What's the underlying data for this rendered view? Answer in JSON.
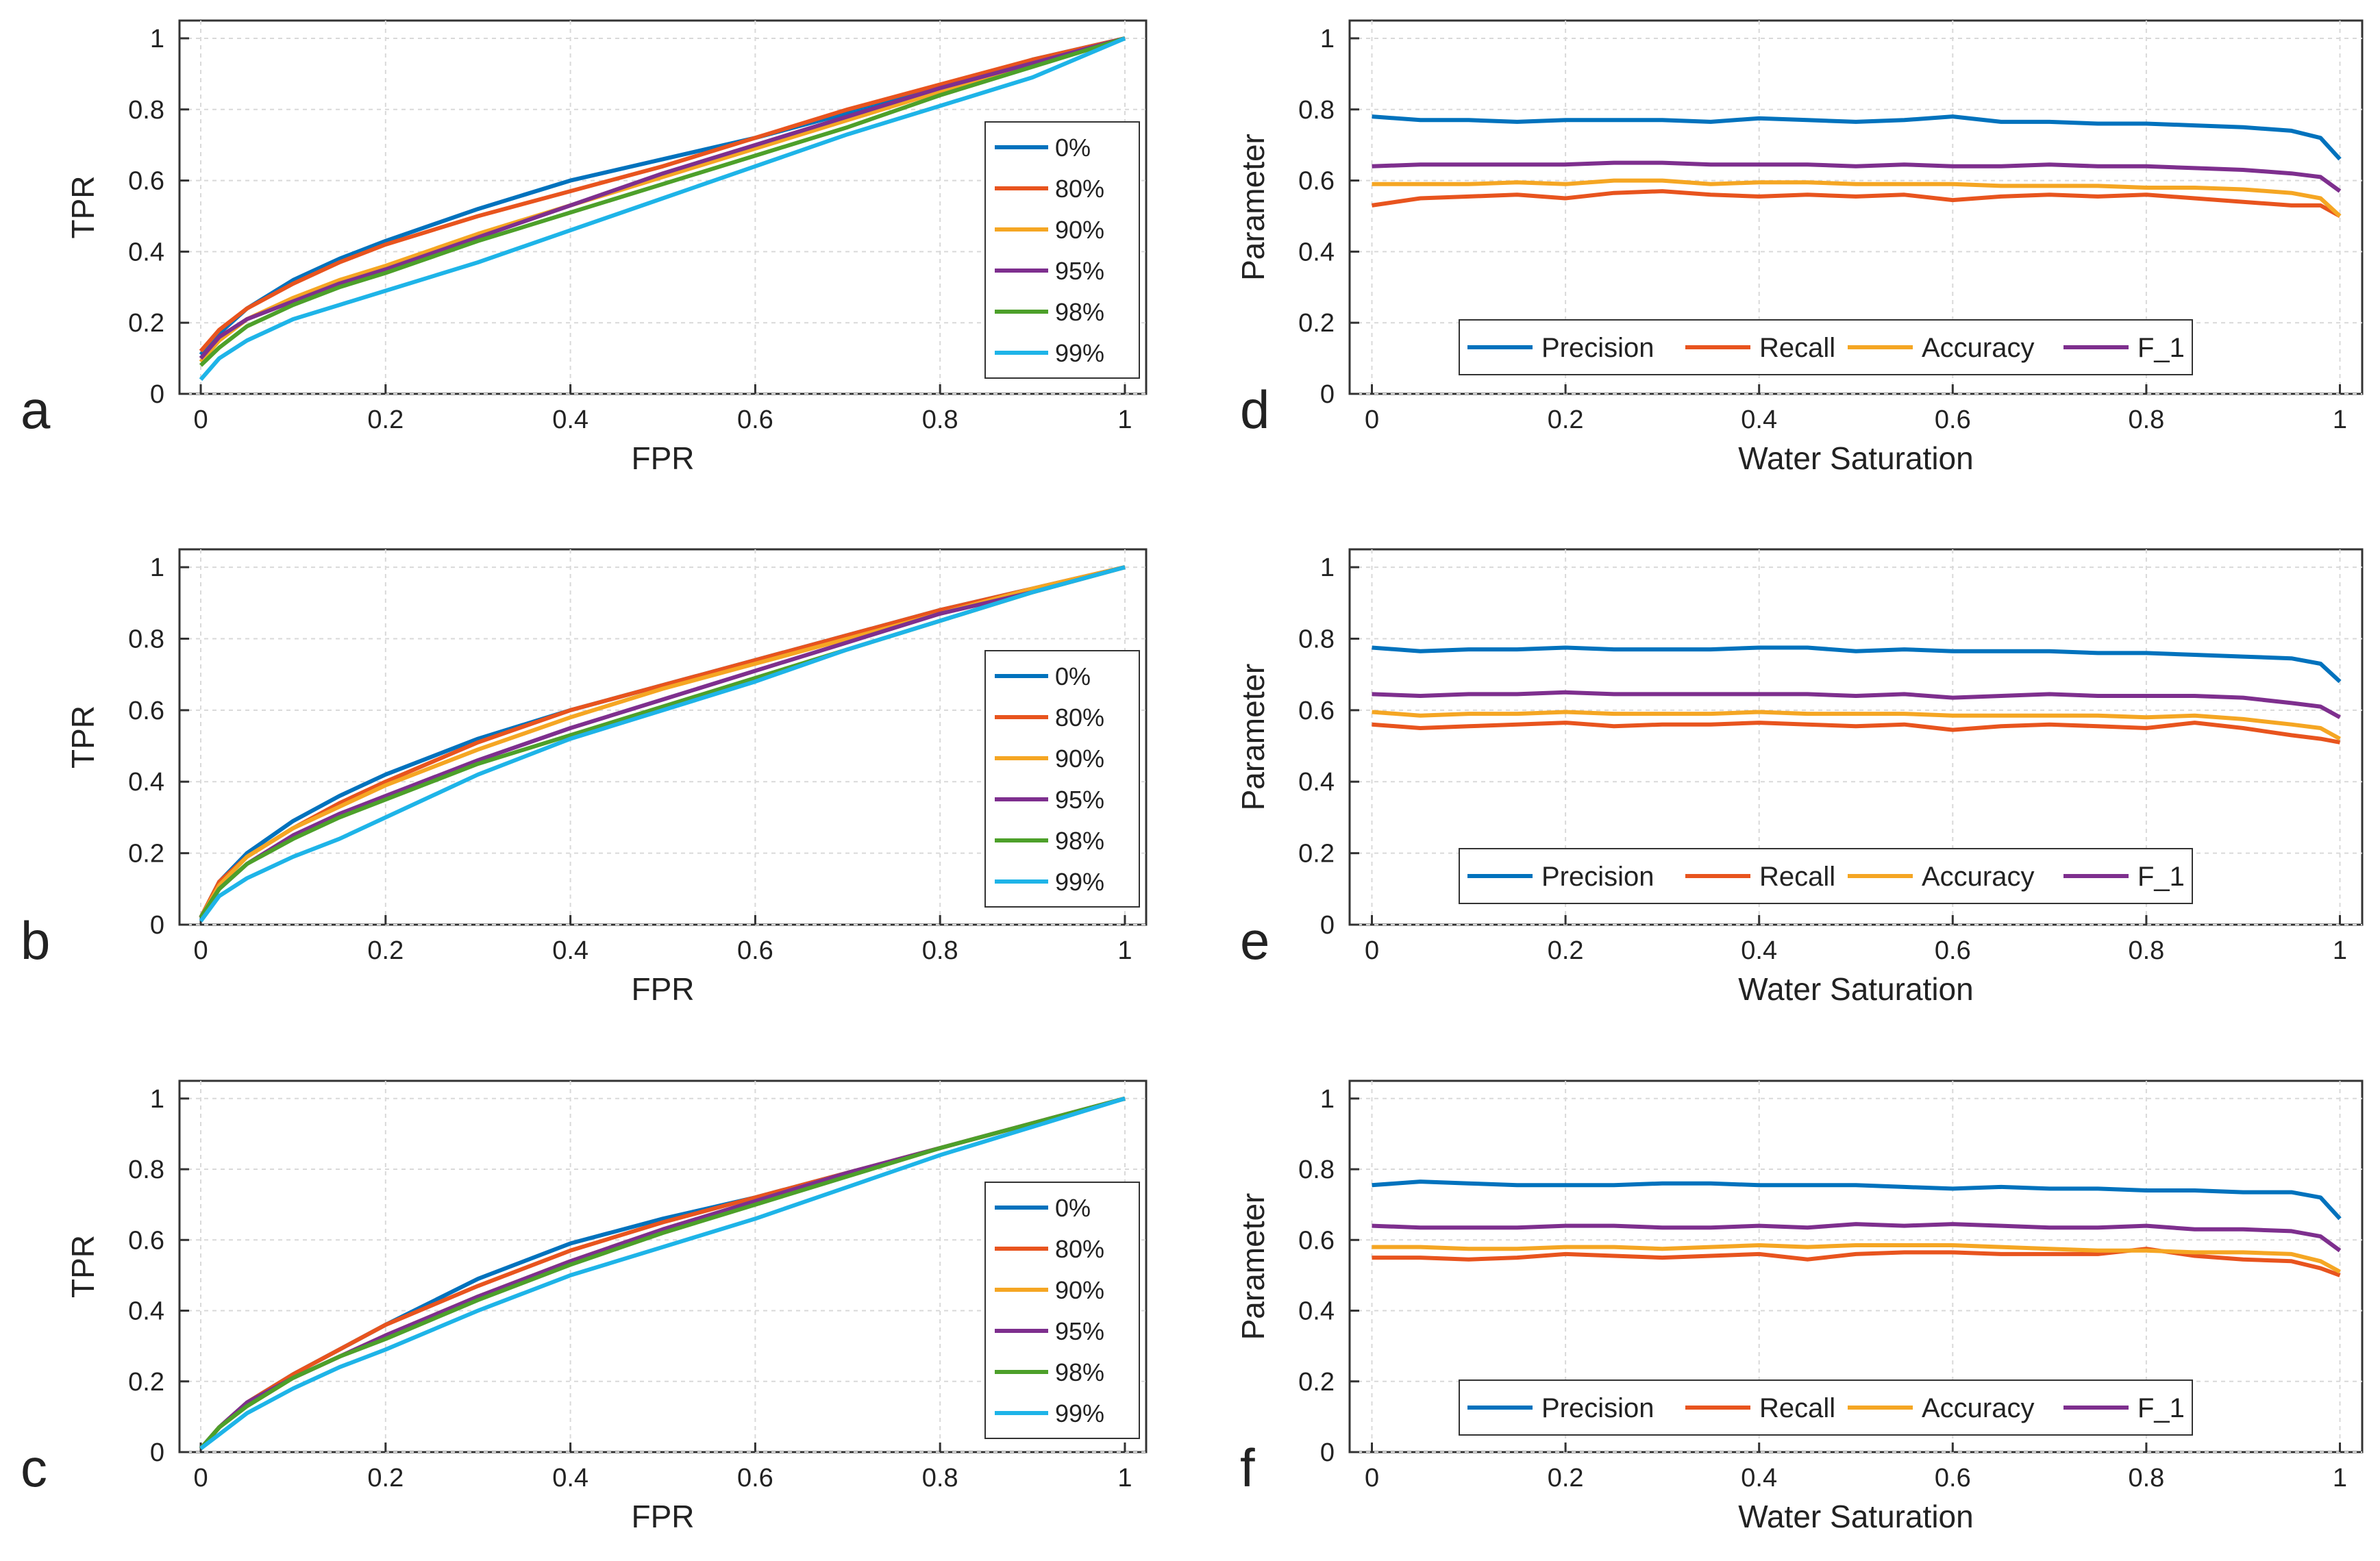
{
  "colors": {
    "blue": "#0072BD",
    "orange": "#E8541E",
    "yellow": "#F5A623",
    "purple": "#7E2F8E",
    "green": "#4DA02A",
    "cyan": "#1EB4E8",
    "grid": "#d9d9d9",
    "axis": "#333333"
  },
  "chart_data": [
    {
      "id": "a",
      "panel_label": "a",
      "type": "line",
      "legend_position": "right",
      "xlabel": "FPR",
      "ylabel": "TPR",
      "xlim": [
        0,
        1
      ],
      "ylim": [
        0,
        1
      ],
      "xticks": [
        0,
        0.2,
        0.4,
        0.6,
        0.8,
        1
      ],
      "xtick_labels": [
        "0",
        "0.2",
        "0.4",
        "0.6",
        "0.8",
        "1"
      ],
      "yticks": [
        0,
        0.2,
        0.4,
        0.6,
        0.8,
        1
      ],
      "ytick_labels": [
        "0",
        "0.2",
        "0.4",
        "0.6",
        "0.8",
        "1"
      ],
      "x": [
        0,
        0.02,
        0.05,
        0.1,
        0.15,
        0.2,
        0.3,
        0.4,
        0.5,
        0.6,
        0.7,
        0.8,
        0.9,
        1
      ],
      "series": [
        {
          "name": "0%",
          "color_key": "blue",
          "values": [
            0.11,
            0.17,
            0.24,
            0.32,
            0.38,
            0.43,
            0.52,
            0.6,
            0.66,
            0.72,
            0.79,
            0.86,
            0.94,
            1
          ]
        },
        {
          "name": "80%",
          "color_key": "orange",
          "values": [
            0.12,
            0.18,
            0.24,
            0.31,
            0.37,
            0.42,
            0.5,
            0.57,
            0.64,
            0.72,
            0.8,
            0.87,
            0.94,
            1
          ]
        },
        {
          "name": "90%",
          "color_key": "yellow",
          "values": [
            0.09,
            0.15,
            0.21,
            0.27,
            0.32,
            0.36,
            0.45,
            0.53,
            0.61,
            0.69,
            0.77,
            0.85,
            0.93,
            1
          ]
        },
        {
          "name": "95%",
          "color_key": "purple",
          "values": [
            0.1,
            0.16,
            0.21,
            0.26,
            0.31,
            0.35,
            0.44,
            0.53,
            0.62,
            0.7,
            0.78,
            0.86,
            0.93,
            1
          ]
        },
        {
          "name": "98%",
          "color_key": "green",
          "values": [
            0.08,
            0.13,
            0.19,
            0.25,
            0.3,
            0.34,
            0.43,
            0.51,
            0.59,
            0.67,
            0.75,
            0.84,
            0.92,
            1
          ]
        },
        {
          "name": "99%",
          "color_key": "cyan",
          "values": [
            0.04,
            0.1,
            0.15,
            0.21,
            0.25,
            0.29,
            0.37,
            0.46,
            0.55,
            0.64,
            0.73,
            0.81,
            0.89,
            1
          ]
        }
      ]
    },
    {
      "id": "b",
      "panel_label": "b",
      "type": "line",
      "legend_position": "right",
      "xlabel": "FPR",
      "ylabel": "TPR",
      "xlim": [
        0,
        1
      ],
      "ylim": [
        0,
        1
      ],
      "xticks": [
        0,
        0.2,
        0.4,
        0.6,
        0.8,
        1
      ],
      "xtick_labels": [
        "0",
        "0.2",
        "0.4",
        "0.6",
        "0.8",
        "1"
      ],
      "yticks": [
        0,
        0.2,
        0.4,
        0.6,
        0.8,
        1
      ],
      "ytick_labels": [
        "0",
        "0.2",
        "0.4",
        "0.6",
        "0.8",
        "1"
      ],
      "x": [
        0,
        0.02,
        0.05,
        0.1,
        0.15,
        0.2,
        0.3,
        0.4,
        0.5,
        0.6,
        0.7,
        0.8,
        0.9,
        1
      ],
      "series": [
        {
          "name": "0%",
          "color_key": "blue",
          "values": [
            0.02,
            0.12,
            0.2,
            0.29,
            0.36,
            0.42,
            0.52,
            0.6,
            0.67,
            0.74,
            0.81,
            0.88,
            0.94,
            1
          ]
        },
        {
          "name": "80%",
          "color_key": "orange",
          "values": [
            0.02,
            0.12,
            0.19,
            0.27,
            0.34,
            0.4,
            0.51,
            0.6,
            0.67,
            0.74,
            0.81,
            0.88,
            0.94,
            1
          ]
        },
        {
          "name": "90%",
          "color_key": "yellow",
          "values": [
            0.02,
            0.11,
            0.19,
            0.27,
            0.33,
            0.39,
            0.49,
            0.58,
            0.66,
            0.73,
            0.8,
            0.87,
            0.94,
            1
          ]
        },
        {
          "name": "95%",
          "color_key": "purple",
          "values": [
            0.02,
            0.1,
            0.17,
            0.25,
            0.31,
            0.36,
            0.46,
            0.55,
            0.63,
            0.71,
            0.79,
            0.87,
            0.93,
            1
          ]
        },
        {
          "name": "98%",
          "color_key": "green",
          "values": [
            0.02,
            0.1,
            0.17,
            0.24,
            0.3,
            0.35,
            0.45,
            0.53,
            0.61,
            0.69,
            0.77,
            0.85,
            0.93,
            1
          ]
        },
        {
          "name": "99%",
          "color_key": "cyan",
          "values": [
            0.01,
            0.08,
            0.13,
            0.19,
            0.24,
            0.3,
            0.42,
            0.52,
            0.6,
            0.68,
            0.77,
            0.85,
            0.93,
            1
          ]
        }
      ]
    },
    {
      "id": "c",
      "panel_label": "c",
      "type": "line",
      "legend_position": "right",
      "xlabel": "FPR",
      "ylabel": "TPR",
      "xlim": [
        0,
        1
      ],
      "ylim": [
        0,
        1
      ],
      "xticks": [
        0,
        0.2,
        0.4,
        0.6,
        0.8,
        1
      ],
      "xtick_labels": [
        "0",
        "0.2",
        "0.4",
        "0.6",
        "0.8",
        "1"
      ],
      "yticks": [
        0,
        0.2,
        0.4,
        0.6,
        0.8,
        1
      ],
      "ytick_labels": [
        "0",
        "0.2",
        "0.4",
        "0.6",
        "0.8",
        "1"
      ],
      "x": [
        0,
        0.02,
        0.05,
        0.1,
        0.15,
        0.2,
        0.3,
        0.4,
        0.5,
        0.6,
        0.7,
        0.8,
        0.9,
        1
      ],
      "series": [
        {
          "name": "0%",
          "color_key": "blue",
          "values": [
            0.01,
            0.07,
            0.14,
            0.22,
            0.29,
            0.36,
            0.49,
            0.59,
            0.66,
            0.72,
            0.79,
            0.86,
            0.93,
            1
          ]
        },
        {
          "name": "80%",
          "color_key": "orange",
          "values": [
            0.01,
            0.07,
            0.14,
            0.22,
            0.29,
            0.36,
            0.47,
            0.57,
            0.65,
            0.72,
            0.79,
            0.86,
            0.93,
            1
          ]
        },
        {
          "name": "90%",
          "color_key": "yellow",
          "values": [
            0.01,
            0.07,
            0.13,
            0.21,
            0.27,
            0.33,
            0.44,
            0.54,
            0.63,
            0.71,
            0.79,
            0.86,
            0.93,
            1
          ]
        },
        {
          "name": "95%",
          "color_key": "purple",
          "values": [
            0.01,
            0.07,
            0.14,
            0.21,
            0.27,
            0.33,
            0.44,
            0.54,
            0.63,
            0.71,
            0.79,
            0.86,
            0.93,
            1
          ]
        },
        {
          "name": "98%",
          "color_key": "green",
          "values": [
            0.01,
            0.07,
            0.13,
            0.21,
            0.27,
            0.32,
            0.43,
            0.53,
            0.62,
            0.7,
            0.78,
            0.86,
            0.93,
            1
          ]
        },
        {
          "name": "99%",
          "color_key": "cyan",
          "values": [
            0.01,
            0.05,
            0.11,
            0.18,
            0.24,
            0.29,
            0.4,
            0.5,
            0.58,
            0.66,
            0.75,
            0.84,
            0.92,
            1
          ]
        }
      ]
    },
    {
      "id": "d",
      "panel_label": "d",
      "type": "line",
      "legend_position": "bottom",
      "xlabel": "Water Saturation",
      "ylabel": "Parameter",
      "xlim": [
        0,
        1
      ],
      "ylim": [
        0,
        1
      ],
      "xticks": [
        0,
        0.2,
        0.4,
        0.6,
        0.8,
        1
      ],
      "xtick_labels": [
        "0",
        "0.2",
        "0.4",
        "0.6",
        "0.8",
        "1"
      ],
      "yticks": [
        0,
        0.2,
        0.4,
        0.6,
        0.8,
        1
      ],
      "ytick_labels": [
        "0",
        "0.2",
        "0.4",
        "0.6",
        "0.8",
        "1"
      ],
      "x": [
        0,
        0.05,
        0.1,
        0.15,
        0.2,
        0.25,
        0.3,
        0.35,
        0.4,
        0.45,
        0.5,
        0.55,
        0.6,
        0.65,
        0.7,
        0.75,
        0.8,
        0.85,
        0.9,
        0.95,
        0.98,
        1
      ],
      "series": [
        {
          "name": "Precision",
          "color_key": "blue",
          "values": [
            0.78,
            0.77,
            0.77,
            0.765,
            0.77,
            0.77,
            0.77,
            0.765,
            0.775,
            0.77,
            0.765,
            0.77,
            0.78,
            0.765,
            0.765,
            0.76,
            0.76,
            0.755,
            0.75,
            0.74,
            0.72,
            0.66
          ]
        },
        {
          "name": "Recall",
          "color_key": "orange",
          "values": [
            0.53,
            0.55,
            0.555,
            0.56,
            0.55,
            0.565,
            0.57,
            0.56,
            0.555,
            0.56,
            0.555,
            0.56,
            0.545,
            0.555,
            0.56,
            0.555,
            0.56,
            0.55,
            0.54,
            0.53,
            0.53,
            0.5
          ]
        },
        {
          "name": "Accuracy",
          "color_key": "yellow",
          "values": [
            0.59,
            0.59,
            0.59,
            0.595,
            0.59,
            0.6,
            0.6,
            0.59,
            0.595,
            0.595,
            0.59,
            0.59,
            0.59,
            0.585,
            0.585,
            0.585,
            0.58,
            0.58,
            0.575,
            0.565,
            0.55,
            0.5
          ]
        },
        {
          "name": "F_1",
          "color_key": "purple",
          "values": [
            0.64,
            0.645,
            0.645,
            0.645,
            0.645,
            0.65,
            0.65,
            0.645,
            0.645,
            0.645,
            0.64,
            0.645,
            0.64,
            0.64,
            0.645,
            0.64,
            0.64,
            0.635,
            0.63,
            0.62,
            0.61,
            0.57
          ]
        }
      ]
    },
    {
      "id": "e",
      "panel_label": "e",
      "type": "line",
      "legend_position": "bottom",
      "xlabel": "Water Saturation",
      "ylabel": "Parameter",
      "xlim": [
        0,
        1
      ],
      "ylim": [
        0,
        1
      ],
      "xticks": [
        0,
        0.2,
        0.4,
        0.6,
        0.8,
        1
      ],
      "xtick_labels": [
        "0",
        "0.2",
        "0.4",
        "0.6",
        "0.8",
        "1"
      ],
      "yticks": [
        0,
        0.2,
        0.4,
        0.6,
        0.8,
        1
      ],
      "ytick_labels": [
        "0",
        "0.2",
        "0.4",
        "0.6",
        "0.8",
        "1"
      ],
      "x": [
        0,
        0.05,
        0.1,
        0.15,
        0.2,
        0.25,
        0.3,
        0.35,
        0.4,
        0.45,
        0.5,
        0.55,
        0.6,
        0.65,
        0.7,
        0.75,
        0.8,
        0.85,
        0.9,
        0.95,
        0.98,
        1
      ],
      "series": [
        {
          "name": "Precision",
          "color_key": "blue",
          "values": [
            0.775,
            0.765,
            0.77,
            0.77,
            0.775,
            0.77,
            0.77,
            0.77,
            0.775,
            0.775,
            0.765,
            0.77,
            0.765,
            0.765,
            0.765,
            0.76,
            0.76,
            0.755,
            0.75,
            0.745,
            0.73,
            0.68
          ]
        },
        {
          "name": "Recall",
          "color_key": "orange",
          "values": [
            0.56,
            0.55,
            0.555,
            0.56,
            0.565,
            0.555,
            0.56,
            0.56,
            0.565,
            0.56,
            0.555,
            0.56,
            0.545,
            0.555,
            0.56,
            0.555,
            0.55,
            0.565,
            0.55,
            0.53,
            0.52,
            0.51
          ]
        },
        {
          "name": "Accuracy",
          "color_key": "yellow",
          "values": [
            0.595,
            0.585,
            0.59,
            0.59,
            0.595,
            0.59,
            0.59,
            0.59,
            0.595,
            0.59,
            0.59,
            0.59,
            0.585,
            0.585,
            0.585,
            0.585,
            0.58,
            0.585,
            0.575,
            0.56,
            0.55,
            0.52
          ]
        },
        {
          "name": "F_1",
          "color_key": "purple",
          "values": [
            0.645,
            0.64,
            0.645,
            0.645,
            0.65,
            0.645,
            0.645,
            0.645,
            0.645,
            0.645,
            0.64,
            0.645,
            0.635,
            0.64,
            0.645,
            0.64,
            0.64,
            0.64,
            0.635,
            0.62,
            0.61,
            0.58
          ]
        }
      ]
    },
    {
      "id": "f",
      "panel_label": "f",
      "type": "line",
      "legend_position": "bottom",
      "xlabel": "Water Saturation",
      "ylabel": "Parameter",
      "xlim": [
        0,
        1
      ],
      "ylim": [
        0,
        1
      ],
      "xticks": [
        0,
        0.2,
        0.4,
        0.6,
        0.8,
        1
      ],
      "xtick_labels": [
        "0",
        "0.2",
        "0.4",
        "0.6",
        "0.8",
        "1"
      ],
      "yticks": [
        0,
        0.2,
        0.4,
        0.6,
        0.8,
        1
      ],
      "ytick_labels": [
        "0",
        "0.2",
        "0.4",
        "0.6",
        "0.8",
        "1"
      ],
      "x": [
        0,
        0.05,
        0.1,
        0.15,
        0.2,
        0.25,
        0.3,
        0.35,
        0.4,
        0.45,
        0.5,
        0.55,
        0.6,
        0.65,
        0.7,
        0.75,
        0.8,
        0.85,
        0.9,
        0.95,
        0.98,
        1
      ],
      "series": [
        {
          "name": "Precision",
          "color_key": "blue",
          "values": [
            0.755,
            0.765,
            0.76,
            0.755,
            0.755,
            0.755,
            0.76,
            0.76,
            0.755,
            0.755,
            0.755,
            0.75,
            0.745,
            0.75,
            0.745,
            0.745,
            0.74,
            0.74,
            0.735,
            0.735,
            0.72,
            0.66
          ]
        },
        {
          "name": "Recall",
          "color_key": "orange",
          "values": [
            0.55,
            0.55,
            0.545,
            0.55,
            0.56,
            0.555,
            0.55,
            0.555,
            0.56,
            0.545,
            0.56,
            0.565,
            0.565,
            0.56,
            0.56,
            0.56,
            0.575,
            0.555,
            0.545,
            0.54,
            0.52,
            0.5
          ]
        },
        {
          "name": "Accuracy",
          "color_key": "yellow",
          "values": [
            0.58,
            0.58,
            0.575,
            0.575,
            0.58,
            0.58,
            0.575,
            0.58,
            0.585,
            0.58,
            0.585,
            0.585,
            0.585,
            0.58,
            0.575,
            0.57,
            0.57,
            0.565,
            0.565,
            0.56,
            0.54,
            0.51
          ]
        },
        {
          "name": "F_1",
          "color_key": "purple",
          "values": [
            0.64,
            0.635,
            0.635,
            0.635,
            0.64,
            0.64,
            0.635,
            0.635,
            0.64,
            0.635,
            0.645,
            0.64,
            0.645,
            0.64,
            0.635,
            0.635,
            0.64,
            0.63,
            0.63,
            0.625,
            0.61,
            0.57
          ]
        }
      ]
    }
  ]
}
